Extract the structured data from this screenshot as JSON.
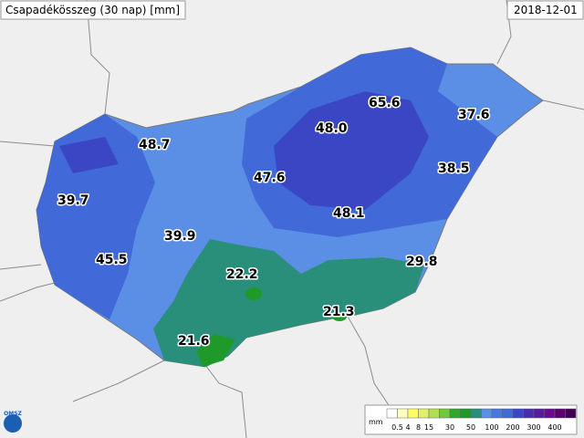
{
  "header": {
    "title": "Csapadékösszeg (30 nap) [mm]",
    "date": "2018-12-01"
  },
  "logo": "OMSZ",
  "stations": [
    {
      "label": "48.7"
    },
    {
      "label": "39.7"
    },
    {
      "label": "45.5"
    },
    {
      "label": "39.9"
    },
    {
      "label": "47.6"
    },
    {
      "label": "48.0"
    },
    {
      "label": "65.6"
    },
    {
      "label": "37.6"
    },
    {
      "label": "38.5"
    },
    {
      "label": "48.1"
    },
    {
      "label": "22.2"
    },
    {
      "label": "29.8"
    },
    {
      "label": "21.3"
    },
    {
      "label": "21.6"
    }
  ],
  "legend": {
    "unit": "mm",
    "labels": [
      "0.5",
      "4",
      "8",
      "15",
      "30",
      "50",
      "100",
      "200",
      "300",
      "400"
    ]
  }
}
